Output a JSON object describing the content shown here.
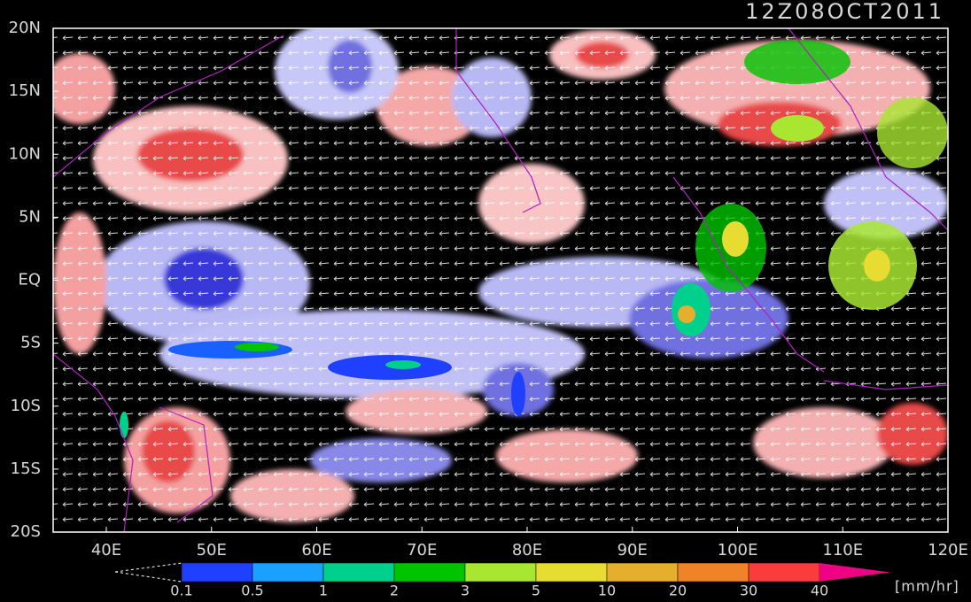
{
  "title": "12Z08OCT2011",
  "lat_labels": [
    "20N",
    "15N",
    "10N",
    "5N",
    "EQ",
    "5S",
    "10S",
    "15S",
    "20S"
  ],
  "lon_labels": [
    "40E",
    "50E",
    "60E",
    "70E",
    "80E",
    "90E",
    "100E",
    "110E",
    "120E"
  ],
  "colorbar": {
    "levels": [
      0.1,
      0.5,
      1,
      2,
      3,
      5,
      10,
      20,
      30,
      40
    ],
    "colors": [
      "#2040ff",
      "#1aa0ff",
      "#00d08c",
      "#00c400",
      "#a8e632",
      "#e6dc32",
      "#e6ae2d",
      "#f08228",
      "#fa3c3c",
      "#f00082"
    ],
    "unit": "[mm/hr]"
  }
}
